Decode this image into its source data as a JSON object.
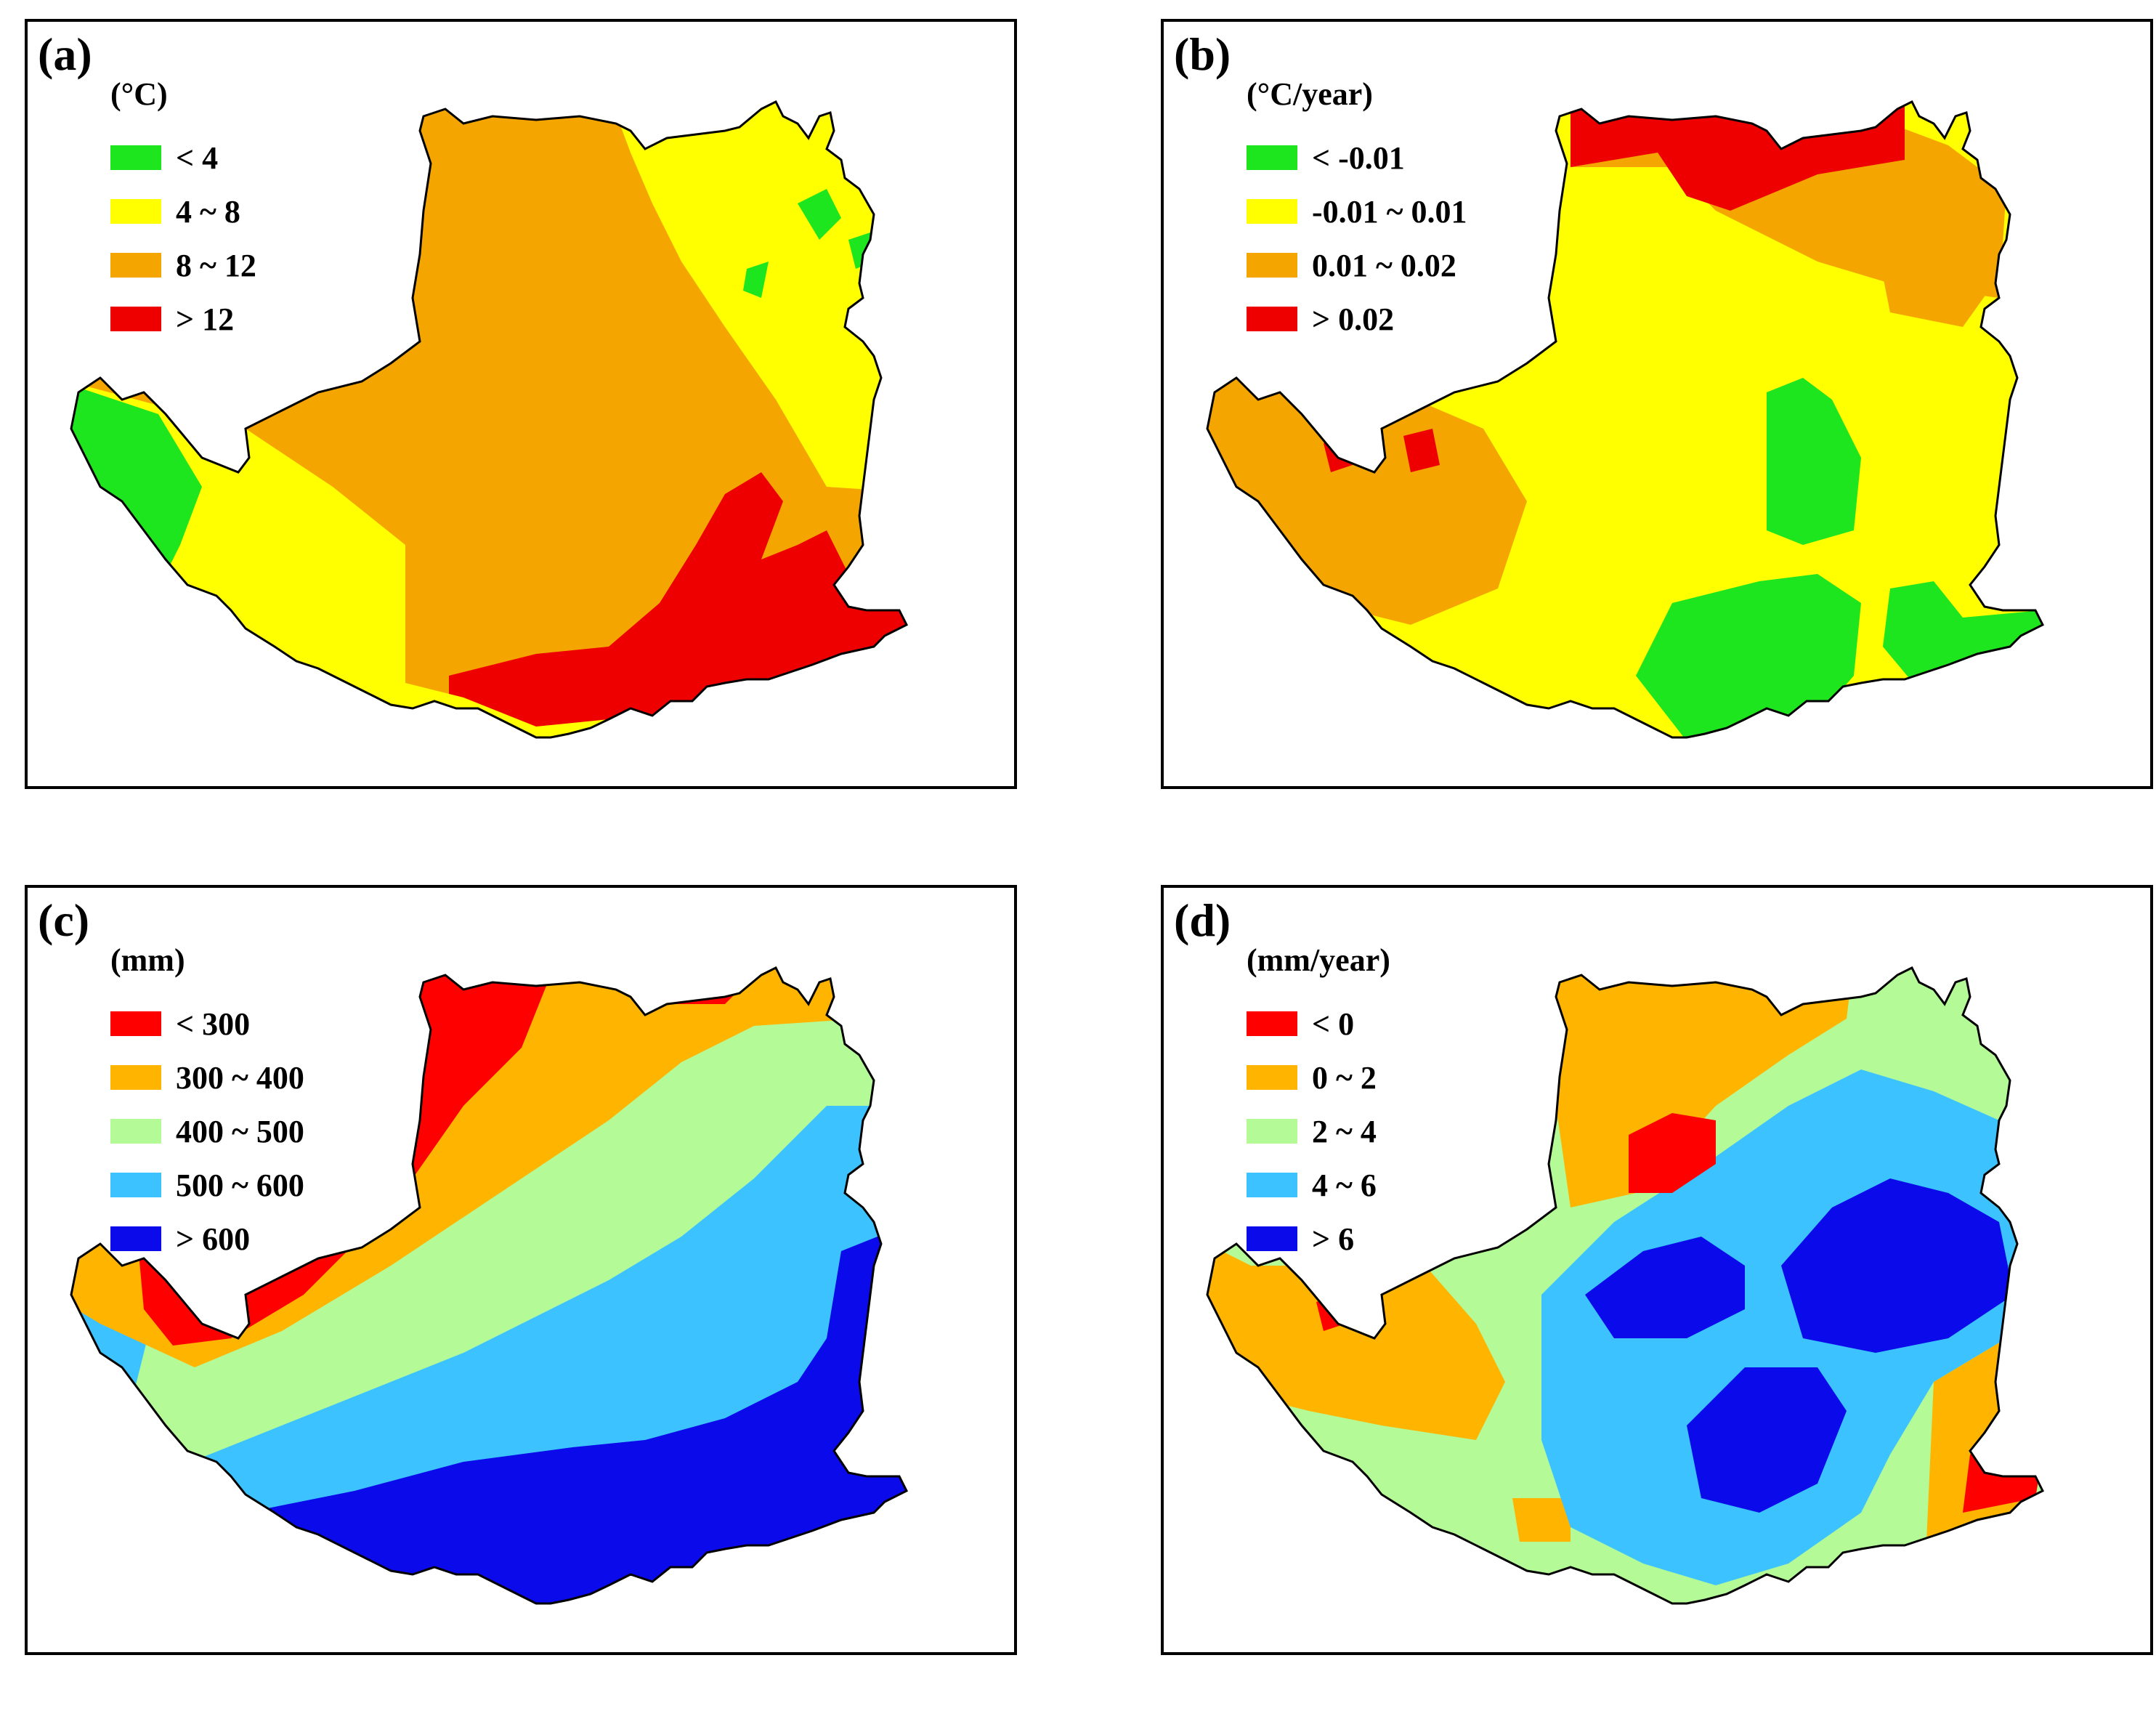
{
  "panels": {
    "a": {
      "label": "(a)",
      "unit": "(°C)",
      "legend": [
        {
          "label": "< 4",
          "color": "#1ee61e"
        },
        {
          "label": "4 ~ 8",
          "color": "#ffff00"
        },
        {
          "label": "8 ~ 12",
          "color": "#f5a500"
        },
        {
          "label": "> 12",
          "color": "#ee0000"
        }
      ]
    },
    "b": {
      "label": "(b)",
      "unit": "(°C/year)",
      "legend": [
        {
          "label": "< -0.01",
          "color": "#1ee61e"
        },
        {
          "label": "-0.01 ~ 0.01",
          "color": "#ffff00"
        },
        {
          "label": "0.01 ~ 0.02",
          "color": "#f5a500"
        },
        {
          "label": "> 0.02",
          "color": "#ee0000"
        }
      ]
    },
    "c": {
      "label": "(c)",
      "unit": "(mm)",
      "legend": [
        {
          "label": "< 300",
          "color": "#ff0000"
        },
        {
          "label": "300 ~ 400",
          "color": "#ffb400"
        },
        {
          "label": "400 ~ 500",
          "color": "#b4fa96"
        },
        {
          "label": "500 ~ 600",
          "color": "#3cc3ff"
        },
        {
          "label": "> 600",
          "color": "#0a0aeb"
        }
      ]
    },
    "d": {
      "label": "(d)",
      "unit": "(mm/year)",
      "legend": [
        {
          "label": "< 0",
          "color": "#ff0000"
        },
        {
          "label": "0 ~ 2",
          "color": "#ffb400"
        },
        {
          "label": "2 ~ 4",
          "color": "#b4fa96"
        },
        {
          "label": "4 ~ 6",
          "color": "#3cc3ff"
        },
        {
          "label": "> 6",
          "color": "#0a0aeb"
        }
      ]
    }
  }
}
